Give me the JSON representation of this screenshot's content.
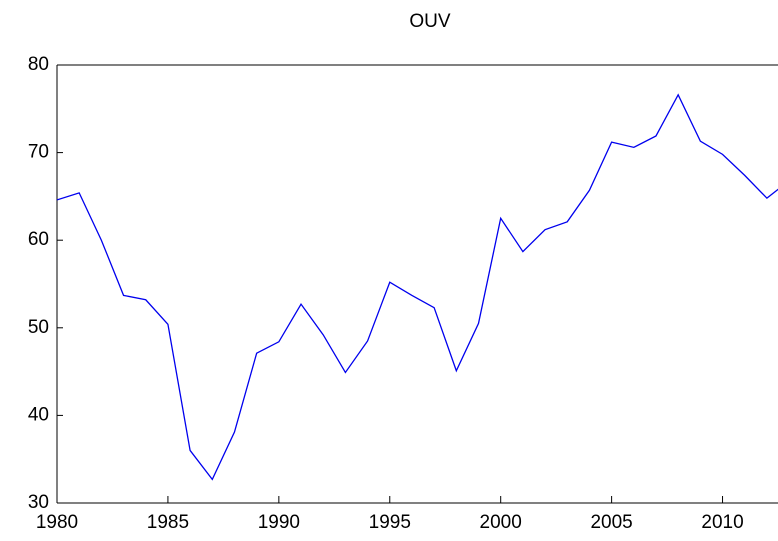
{
  "chart_data": {
    "type": "line",
    "title": "OUV",
    "x": [
      1980,
      1981,
      1982,
      1983,
      1984,
      1985,
      1986,
      1987,
      1988,
      1989,
      1990,
      1991,
      1992,
      1993,
      1994,
      1995,
      1996,
      1997,
      1998,
      1999,
      2000,
      2001,
      2002,
      2003,
      2004,
      2005,
      2006,
      2007,
      2008,
      2009,
      2010,
      2011,
      2012,
      2013
    ],
    "series": [
      {
        "name": "OUV",
        "color": "#0000ee",
        "values": [
          64.6,
          65.4,
          60.0,
          53.7,
          53.2,
          50.4,
          36.0,
          32.7,
          38.1,
          47.1,
          48.4,
          52.7,
          49.2,
          44.9,
          48.5,
          55.2,
          53.7,
          52.3,
          45.1,
          50.5,
          62.5,
          58.7,
          61.2,
          62.1,
          65.7,
          71.2,
          70.6,
          71.9,
          76.6,
          71.3,
          69.8,
          67.4,
          64.8,
          66.8
        ]
      }
    ],
    "xlim": [
      1980,
      2012.5
    ],
    "xticks": [
      1980,
      1985,
      1990,
      1995,
      2000,
      2005,
      2010
    ],
    "ylim": [
      30,
      80
    ],
    "yticks": [
      30,
      40,
      50,
      60,
      70,
      80
    ],
    "grid": false
  }
}
